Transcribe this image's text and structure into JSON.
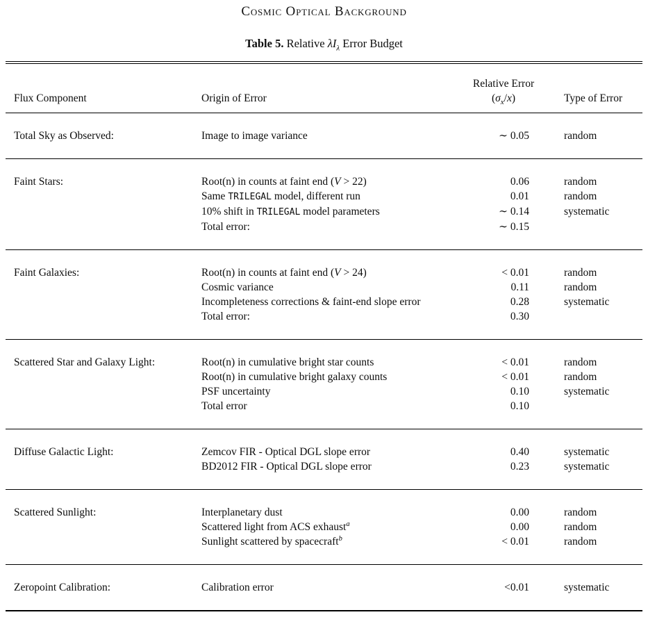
{
  "page": {
    "running_title": "Cosmic Optical Background",
    "caption": [
      {
        "t": "Table 5.",
        "style": "b"
      },
      {
        "t": "  Relative "
      },
      {
        "t": "λI",
        "style": "i"
      },
      {
        "t": "λ",
        "style": "sub"
      },
      {
        "t": " Error Budget"
      }
    ]
  },
  "table": {
    "headers": {
      "flux": "Flux Component",
      "origin": "Origin of Error",
      "error_line1": "Relative Error",
      "error_line2": [
        {
          "t": "("
        },
        {
          "t": "σ",
          "style": "i"
        },
        {
          "t": "x",
          "style": "sub"
        },
        {
          "t": "/"
        },
        {
          "t": "x",
          "style": "i"
        },
        {
          "t": ")"
        }
      ],
      "type": "Type of Error"
    },
    "groups": [
      {
        "flux": "Total Sky as Observed:",
        "rows": [
          {
            "origin": [
              {
                "t": "Image to image variance"
              }
            ],
            "error": "∼ 0.05",
            "type": "random"
          }
        ]
      },
      {
        "flux": "Faint Stars:",
        "rows": [
          {
            "origin": [
              {
                "t": "Root(n) in counts at faint end ("
              },
              {
                "t": "V",
                "style": "i"
              },
              {
                "t": " > 22)"
              }
            ],
            "error": "0.06",
            "type": "random"
          },
          {
            "origin": [
              {
                "t": "Same "
              },
              {
                "t": "TRILEGAL",
                "style": "tt"
              },
              {
                "t": " model, different run"
              }
            ],
            "error": "0.01",
            "type": "random"
          },
          {
            "origin": [
              {
                "t": "10% shift in "
              },
              {
                "t": "TRILEGAL",
                "style": "tt"
              },
              {
                "t": " model parameters"
              }
            ],
            "error": "∼ 0.14",
            "type": "systematic"
          },
          {
            "origin": [
              {
                "t": "Total error:"
              }
            ],
            "error": "∼ 0.15",
            "type": ""
          }
        ]
      },
      {
        "flux": "Faint Galaxies:",
        "rows": [
          {
            "origin": [
              {
                "t": "Root(n) in counts at faint end ("
              },
              {
                "t": "V",
                "style": "i"
              },
              {
                "t": " > 24)"
              }
            ],
            "error": "< 0.01",
            "type": "random"
          },
          {
            "origin": [
              {
                "t": "Cosmic variance"
              }
            ],
            "error": "0.11",
            "type": "random"
          },
          {
            "origin": [
              {
                "t": "Incompleteness corrections & faint-end slope error"
              }
            ],
            "error": "0.28",
            "type": "systematic"
          },
          {
            "origin": [
              {
                "t": "Total error:"
              }
            ],
            "error": "0.30",
            "type": ""
          }
        ]
      },
      {
        "flux": "Scattered Star and Galaxy Light:",
        "rows": [
          {
            "origin": [
              {
                "t": "Root(n) in cumulative bright star counts"
              }
            ],
            "error": "< 0.01",
            "type": "random"
          },
          {
            "origin": [
              {
                "t": "Root(n) in cumulative bright galaxy counts"
              }
            ],
            "error": "< 0.01",
            "type": "random"
          },
          {
            "origin": [
              {
                "t": "PSF uncertainty"
              }
            ],
            "error": "0.10",
            "type": "systematic"
          },
          {
            "origin": [
              {
                "t": "Total error"
              }
            ],
            "error": "0.10",
            "type": ""
          }
        ]
      },
      {
        "flux": "Diffuse Galactic Light:",
        "rows": [
          {
            "origin": [
              {
                "t": "Zemcov FIR - Optical DGL slope error"
              }
            ],
            "error": "0.40",
            "type": "systematic"
          },
          {
            "origin": [
              {
                "t": "BD2012 FIR - Optical DGL slope error"
              }
            ],
            "error": "0.23",
            "type": "systematic"
          }
        ]
      },
      {
        "flux": "Scattered Sunlight:",
        "rows": [
          {
            "origin": [
              {
                "t": "Interplanetary dust"
              }
            ],
            "error": "0.00",
            "type": "random"
          },
          {
            "origin": [
              {
                "t": "Scattered light from ACS exhaust"
              },
              {
                "t": "a",
                "style": "sup"
              }
            ],
            "error": "0.00",
            "type": "random"
          },
          {
            "origin": [
              {
                "t": "Sunlight scattered by spacecraft"
              },
              {
                "t": "b",
                "style": "sup"
              }
            ],
            "error": "< 0.01",
            "type": "random"
          }
        ]
      },
      {
        "flux": "Zeropoint Calibration:",
        "rows": [
          {
            "origin": [
              {
                "t": "Calibration error"
              }
            ],
            "error": "<0.01",
            "type": "systematic"
          }
        ]
      }
    ]
  }
}
